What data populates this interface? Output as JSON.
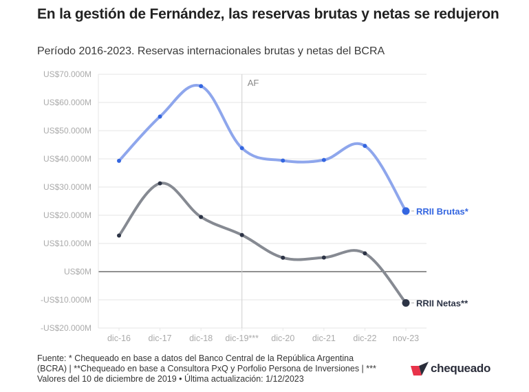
{
  "header": {
    "title": "En la gestión de Fernández, las reservas brutas y netas se redujeron",
    "subtitle": "Período 2016-2023. Reservas internacionales brutas y netas del BCRA"
  },
  "chart_data": {
    "type": "line",
    "title": "En la gestión de Fernández, las reservas brutas y netas se redujeron",
    "subtitle": "Período 2016-2023. Reservas internacionales brutas y netas del BCRA",
    "xlabel": "",
    "ylabel": "",
    "categories": [
      "dic-16",
      "dic-17",
      "dic-18",
      "dic-19***",
      "dic-20",
      "dic-21",
      "dic-22",
      "nov-23"
    ],
    "ylim": [
      -20000,
      70000
    ],
    "yticks": [
      70000,
      60000,
      50000,
      40000,
      30000,
      20000,
      10000,
      0,
      -10000,
      -20000
    ],
    "ytick_labels": [
      "US$70.000M",
      "US$60.000M",
      "US$50.000M",
      "US$40.000M",
      "US$30.000M",
      "US$20.000M",
      "US$10.000M",
      "US$0M",
      "-US$10.000M",
      "-US$20.000M"
    ],
    "grid": true,
    "annotation": {
      "label": "AF",
      "at_category": "dic-19***"
    },
    "series": [
      {
        "name": "RRII Brutas*",
        "label": "RRII Brutas*",
        "line_color": "#8ea6ec",
        "point_color": "#3466e0",
        "values": [
          39300,
          55000,
          65800,
          43800,
          39400,
          39600,
          44600,
          21500
        ]
      },
      {
        "name": "RRII Netas**",
        "label": "RRII Netas**",
        "line_color": "#868a92",
        "point_color": "#2d3446",
        "values": [
          12800,
          31300,
          19400,
          13000,
          4950,
          5000,
          6500,
          -11100
        ]
      }
    ],
    "legend": "inline-right"
  },
  "footer": {
    "line1": "Fuente: * Chequeado en base a datos del Banco Central de la República Argentina",
    "line2": "(BCRA) | **Chequeado en base a Consultora PxQ y Porfolio Persona de Inversiones | ***",
    "line3": "Valores del 10 de diciembre de 2019 • Última actualización: 1/12/2023"
  },
  "logo": {
    "text": "chequeado",
    "colors": {
      "red": "#e8334a",
      "navy": "#2a2d3a"
    }
  }
}
